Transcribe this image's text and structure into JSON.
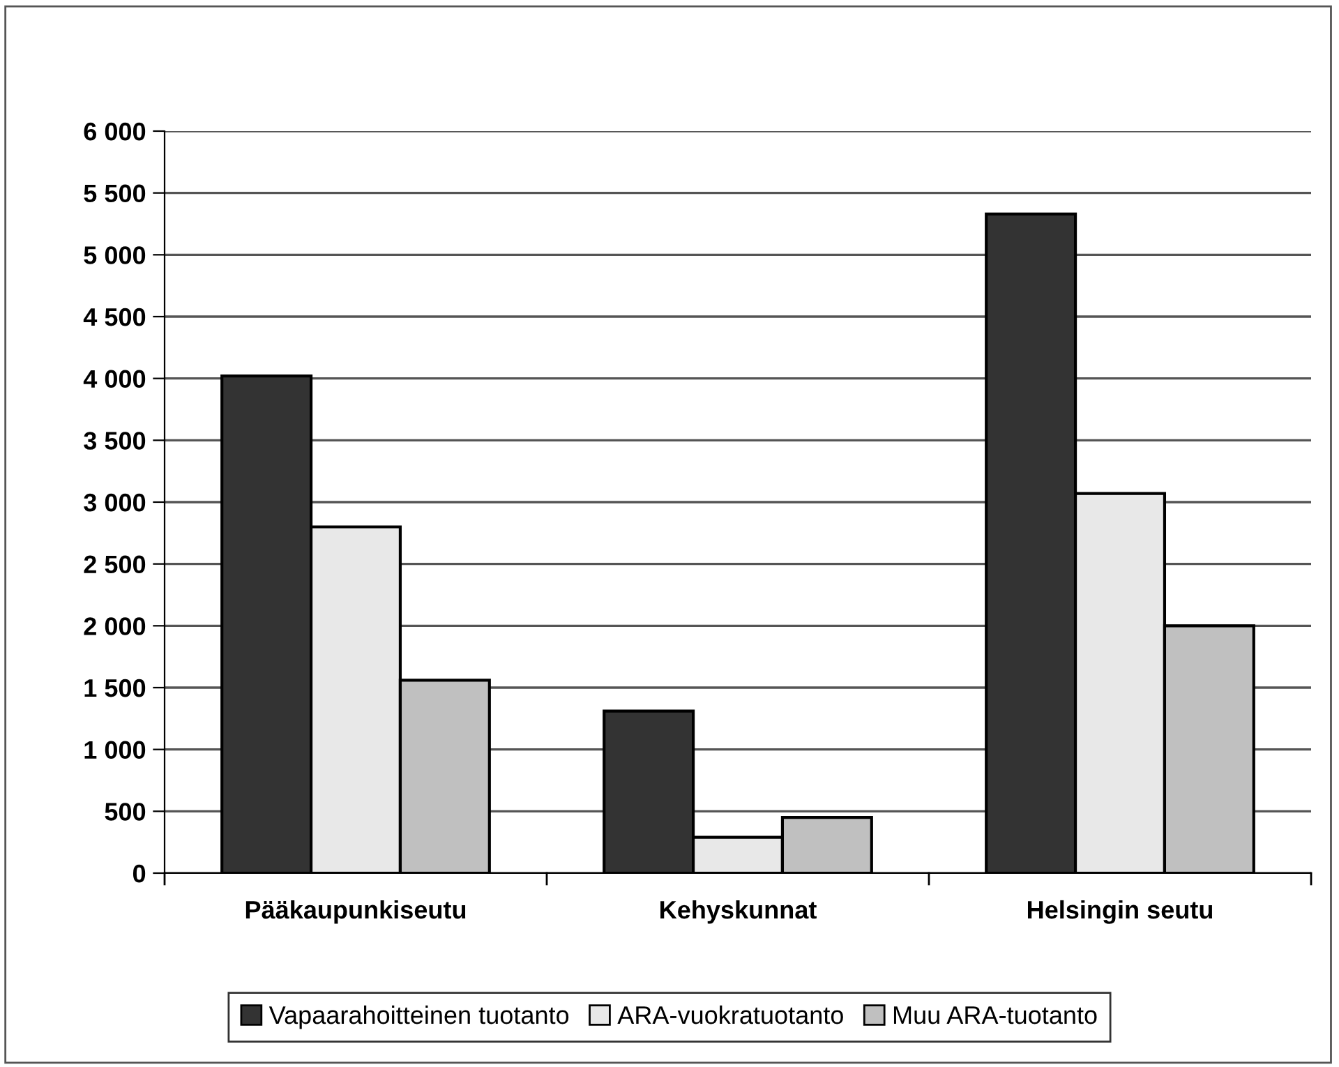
{
  "chart_data": {
    "type": "bar",
    "categories": [
      "Pääkaupunkiseutu",
      "Kehyskunnat",
      "Helsingin seutu"
    ],
    "series": [
      {
        "name": "Vapaarahoitteinen tuotanto",
        "color": "#333333",
        "values": [
          4020,
          1310,
          5330
        ]
      },
      {
        "name": "ARA-vuokratuotanto",
        "color": "#e8e8e8",
        "values": [
          2800,
          290,
          3070
        ]
      },
      {
        "name": "Muu ARA-tuotanto",
        "color": "#c0c0c0",
        "values": [
          1560,
          450,
          2000
        ]
      }
    ],
    "ylim": [
      0,
      6000
    ],
    "yticks": [
      {
        "value": 0,
        "label": "0"
      },
      {
        "value": 500,
        "label": "500"
      },
      {
        "value": 1000,
        "label": "1 000"
      },
      {
        "value": 1500,
        "label": "1 500"
      },
      {
        "value": 2000,
        "label": "2 000"
      },
      {
        "value": 2500,
        "label": "2 500"
      },
      {
        "value": 3000,
        "label": "3 000"
      },
      {
        "value": 3500,
        "label": "3 500"
      },
      {
        "value": 4000,
        "label": "4 000"
      },
      {
        "value": 4500,
        "label": "4 500"
      },
      {
        "value": 5000,
        "label": "5 000"
      },
      {
        "value": 5500,
        "label": "5 500"
      },
      {
        "value": 6000,
        "label": "6 000"
      }
    ],
    "grid": "y",
    "legend": "bottom"
  }
}
